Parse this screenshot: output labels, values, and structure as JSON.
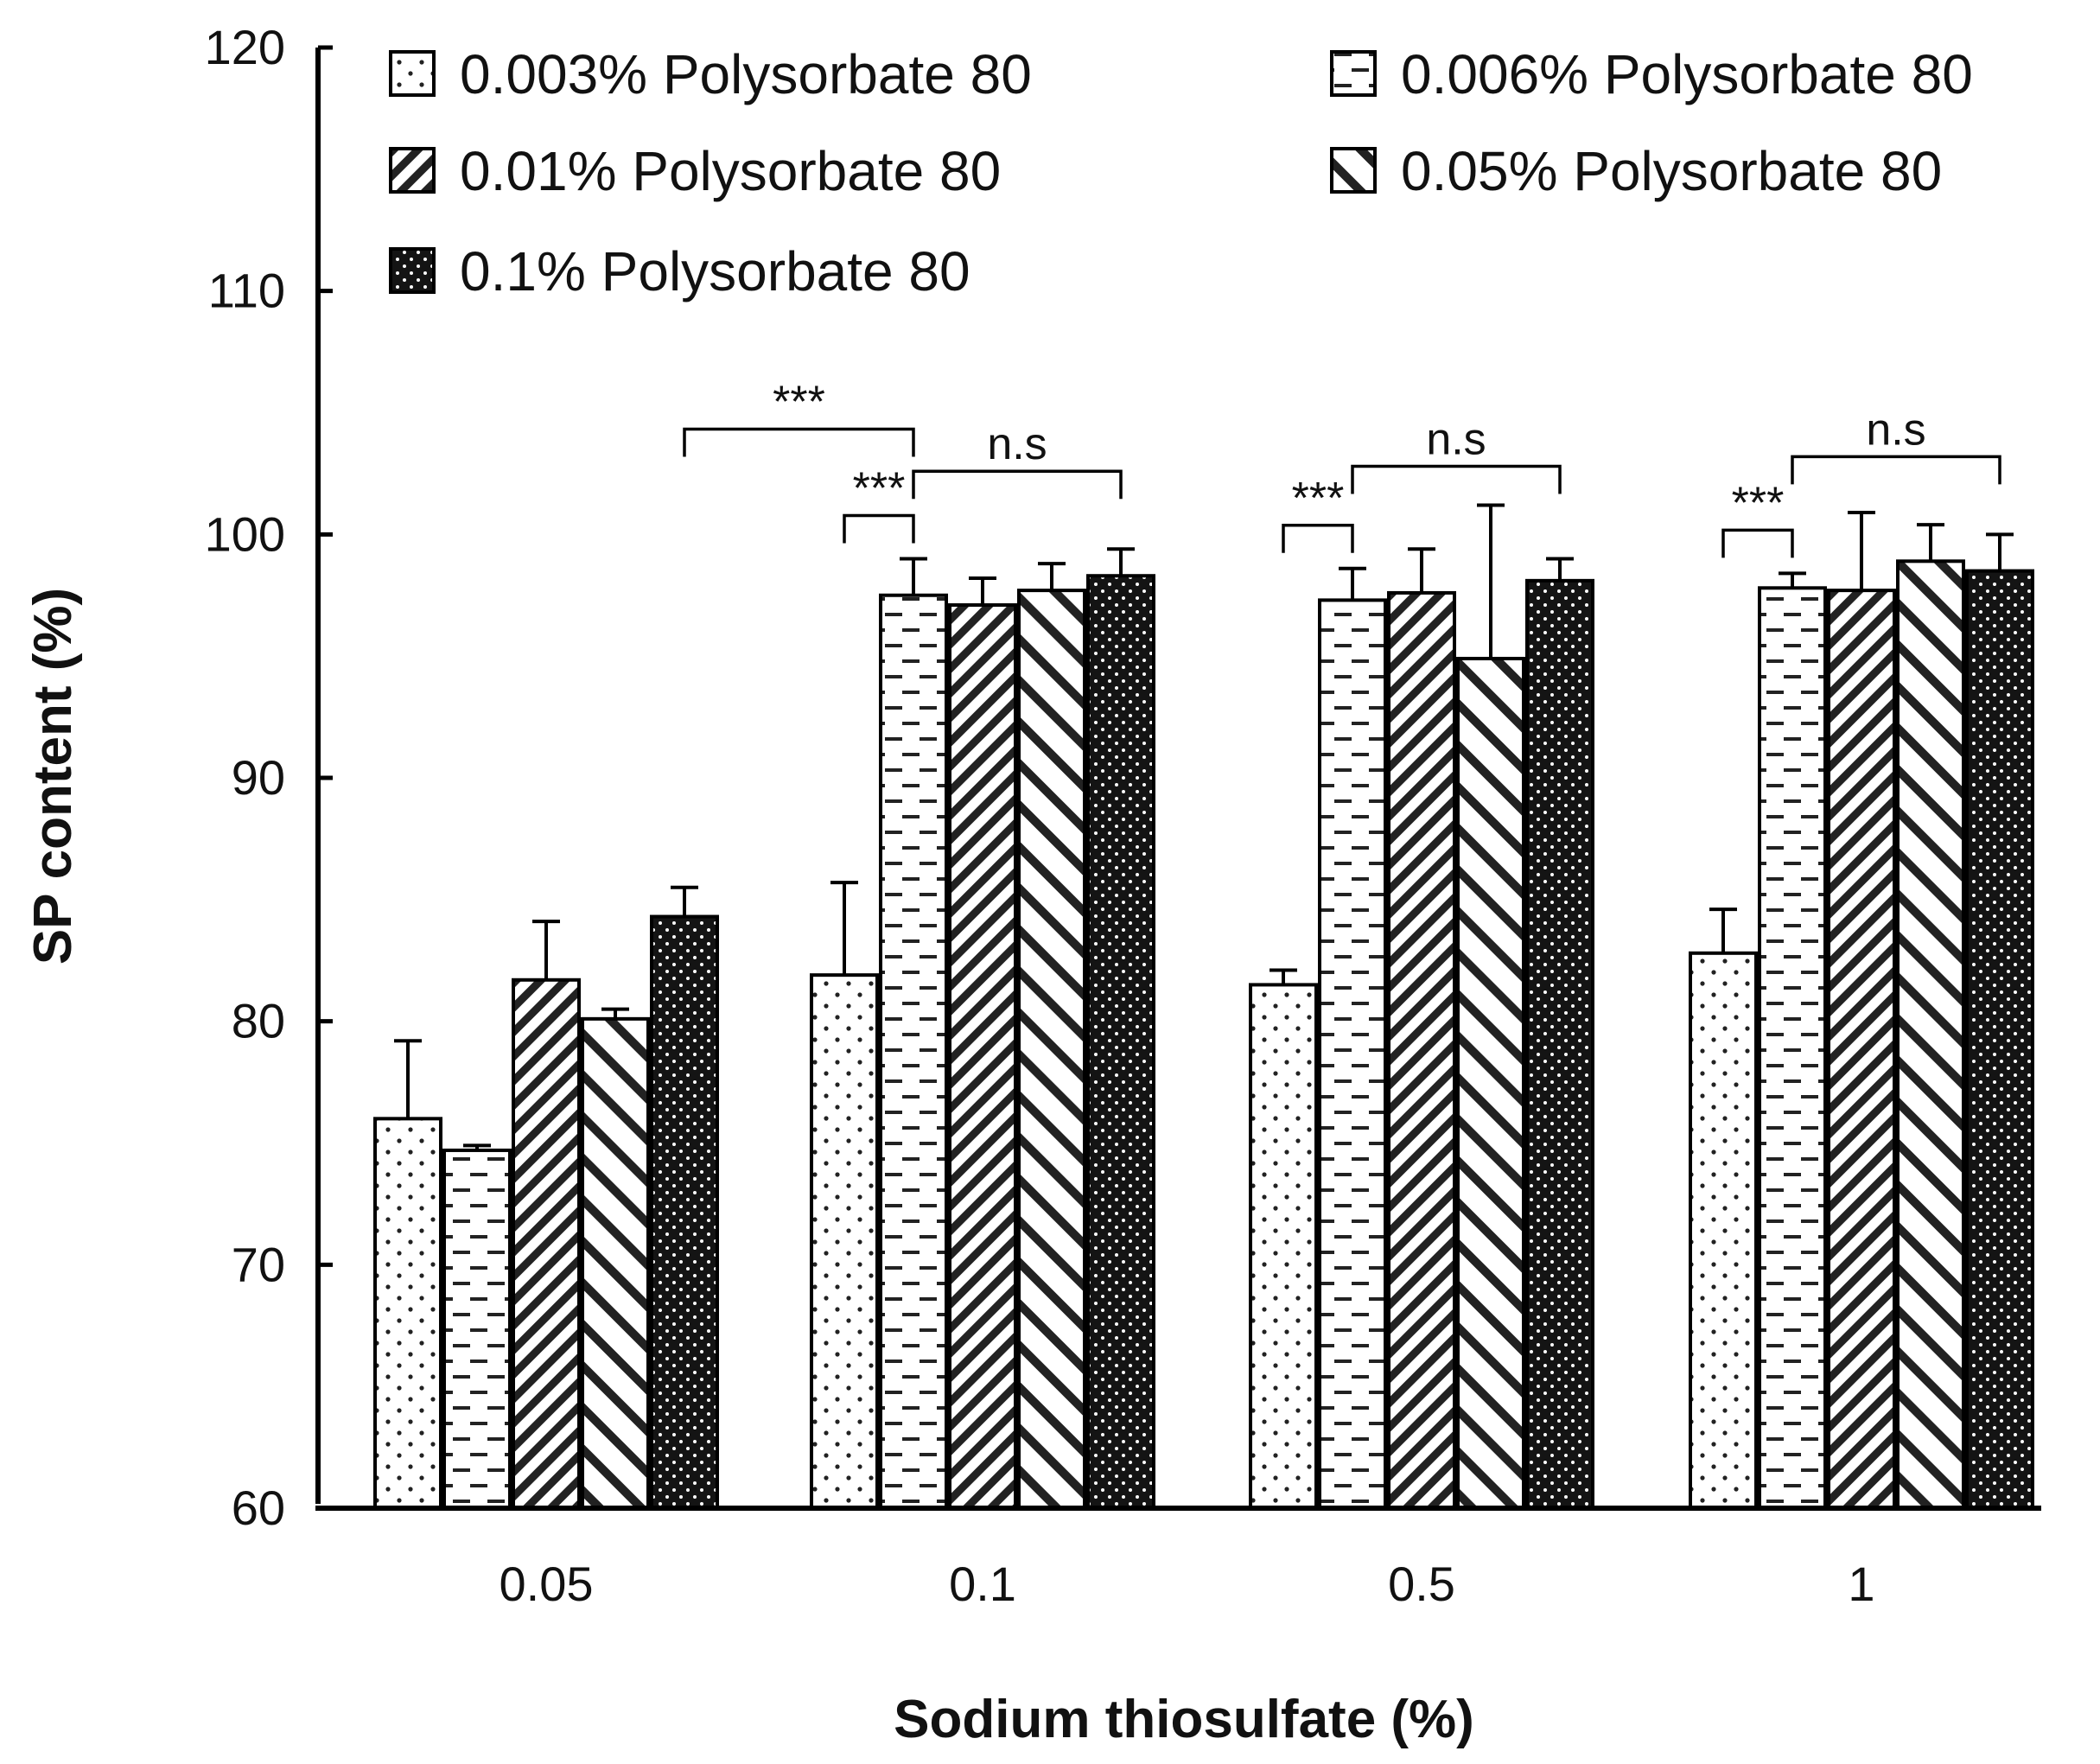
{
  "chart_data": {
    "type": "bar",
    "title": "",
    "xlabel": "Sodium thiosulfate (%)",
    "ylabel": "SP content (%)",
    "ylim": [
      60,
      120
    ],
    "yticks": [
      "60",
      "70",
      "80",
      "90",
      "100",
      "110",
      "120"
    ],
    "categories": [
      "0.05",
      "0.1",
      "0.5",
      "1"
    ],
    "series": [
      {
        "name": "0.003% Polysorbate 80",
        "pattern": "dots",
        "values": [
          76.0,
          81.9,
          81.5,
          82.8
        ],
        "errors": [
          3.2,
          3.8,
          0.6,
          1.8
        ]
      },
      {
        "name": "0.006% Polysorbate 80",
        "pattern": "dashes",
        "values": [
          74.7,
          97.5,
          97.3,
          97.8
        ],
        "errors": [
          0.2,
          1.5,
          1.3,
          0.6
        ]
      },
      {
        "name": "0.01% Polysorbate 80",
        "pattern": "back-hatch",
        "values": [
          81.7,
          97.1,
          97.6,
          97.7
        ],
        "errors": [
          2.4,
          1.1,
          1.8,
          3.2
        ]
      },
      {
        "name": "0.05% Polysorbate 80",
        "pattern": "fwd-hatch",
        "values": [
          80.1,
          97.7,
          94.9,
          98.9
        ],
        "errors": [
          0.4,
          1.1,
          6.3,
          1.5
        ]
      },
      {
        "name": "0.1% Polysorbate 80",
        "pattern": "dense-dots",
        "values": [
          84.3,
          98.3,
          98.1,
          98.5
        ],
        "errors": [
          1.2,
          1.1,
          0.9,
          1.5
        ]
      }
    ],
    "significance": [
      {
        "label": "***",
        "from": [
          0,
          4
        ],
        "to": [
          1,
          1
        ]
      },
      {
        "label": "***",
        "from": [
          1,
          0
        ],
        "to": [
          1,
          1
        ]
      },
      {
        "label": "n.s",
        "from": [
          1,
          1
        ],
        "to": [
          1,
          4
        ]
      },
      {
        "label": "***",
        "from": [
          2,
          0
        ],
        "to": [
          2,
          1
        ]
      },
      {
        "label": "n.s",
        "from": [
          2,
          1
        ],
        "to": [
          2,
          4
        ]
      },
      {
        "label": "***",
        "from": [
          3,
          0
        ],
        "to": [
          3,
          1
        ]
      },
      {
        "label": "n.s",
        "from": [
          3,
          1
        ],
        "to": [
          3,
          4
        ]
      }
    ],
    "legend_position": "top"
  }
}
